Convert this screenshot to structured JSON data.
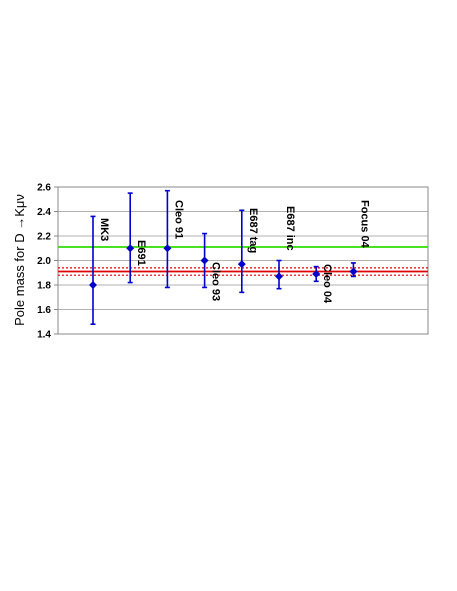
{
  "chart_data": {
    "type": "scatter",
    "ylabel": "Pole mass for D →Kμν",
    "ylim": [
      1.4,
      2.6
    ],
    "yticks": [
      "1.4",
      "1.6",
      "1.8",
      "2.0",
      "2.2",
      "2.4",
      "2.6"
    ],
    "grid": true,
    "points": [
      {
        "label": "MK3",
        "y": 1.8,
        "err_low": 1.48,
        "err_high": 2.36
      },
      {
        "label": "E691",
        "y": 2.1,
        "err_low": 1.82,
        "err_high": 2.55
      },
      {
        "label": "Cleo 91",
        "y": 2.1,
        "err_low": 1.78,
        "err_high": 2.57
      },
      {
        "label": "Cleo 93",
        "y": 2.0,
        "err_low": 1.78,
        "err_high": 2.22
      },
      {
        "label": "E687 tag",
        "y": 1.97,
        "err_low": 1.74,
        "err_high": 2.41
      },
      {
        "label": "E687 inc",
        "y": 1.87,
        "err_low": 1.77,
        "err_high": 2.0
      },
      {
        "label": "Cleo 04",
        "y": 1.89,
        "err_low": 1.83,
        "err_high": 1.95
      },
      {
        "label": "Focus 04",
        "y": 1.91,
        "err_low": 1.87,
        "err_high": 1.98
      }
    ],
    "reference_lines": [
      {
        "y": 2.11,
        "color": "#33dd00",
        "style": "solid"
      },
      {
        "y": 1.91,
        "color": "#e00000",
        "style": "solid"
      },
      {
        "y": 1.94,
        "color": "#e00000",
        "style": "dotted"
      },
      {
        "y": 1.88,
        "color": "#e00000",
        "style": "dotted"
      }
    ],
    "colors": {
      "points": "#0000cc",
      "grid": "#999999",
      "axis": "#888888"
    }
  }
}
